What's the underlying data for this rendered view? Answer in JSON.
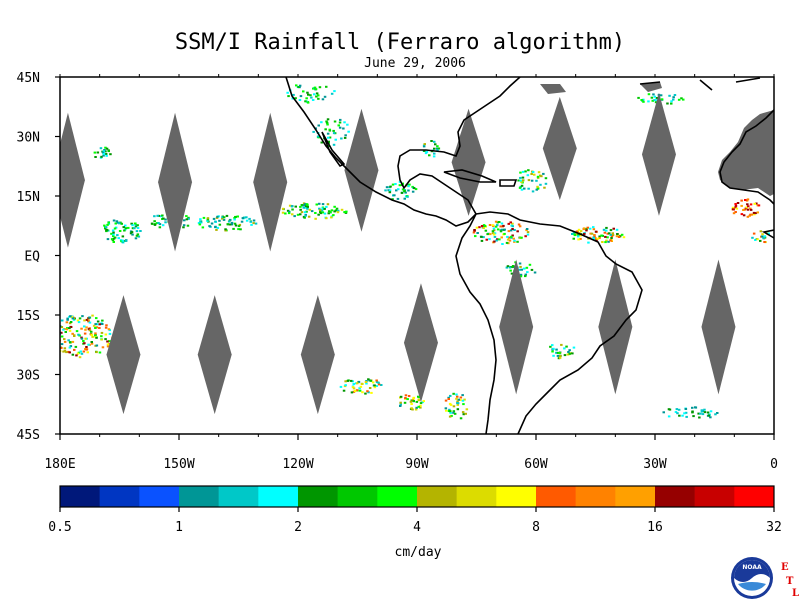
{
  "title": "SSM/I Rainfall (Ferraro algorithm)",
  "subtitle": "June 29, 2006",
  "map": {
    "lon_range": [
      -180,
      0
    ],
    "lat_range": [
      -45,
      45
    ],
    "lon_ticks": [
      {
        "value": -180,
        "label": "180E"
      },
      {
        "value": -150,
        "label": "150W"
      },
      {
        "value": -120,
        "label": "120W"
      },
      {
        "value": -90,
        "label": "90W"
      },
      {
        "value": -60,
        "label": "60W"
      },
      {
        "value": -30,
        "label": "30W"
      },
      {
        "value": 0,
        "label": "0"
      }
    ],
    "lat_ticks": [
      {
        "value": 45,
        "label": "45N"
      },
      {
        "value": 30,
        "label": "30N"
      },
      {
        "value": 15,
        "label": "15N"
      },
      {
        "value": 0,
        "label": "EQ"
      },
      {
        "value": -15,
        "label": "15S"
      },
      {
        "value": -30,
        "label": "30S"
      },
      {
        "value": -45,
        "label": "45S"
      }
    ],
    "no_data_color": "#666666",
    "coast_color": "#000000",
    "no_data_gaps": [
      {
        "lon": -178,
        "lat_top": 36,
        "lat_bottom": 2
      },
      {
        "lon": -151,
        "lat_top": 36,
        "lat_bottom": 1
      },
      {
        "lon": -127,
        "lat_top": 36,
        "lat_bottom": 1
      },
      {
        "lon": -104,
        "lat_top": 37,
        "lat_bottom": 6
      },
      {
        "lon": -77,
        "lat_top": 37,
        "lat_bottom": 10
      },
      {
        "lon": -54,
        "lat_top": 40,
        "lat_bottom": 14
      },
      {
        "lon": -29,
        "lat_top": 41,
        "lat_bottom": 10
      },
      {
        "lon": -164,
        "lat_top": -10,
        "lat_bottom": -40
      },
      {
        "lon": -141,
        "lat_top": -10,
        "lat_bottom": -40
      },
      {
        "lon": -115,
        "lat_top": -10,
        "lat_bottom": -40
      },
      {
        "lon": -89,
        "lat_top": -7,
        "lat_bottom": -37
      },
      {
        "lon": -65,
        "lat_top": -1,
        "lat_bottom": -35
      },
      {
        "lon": -40,
        "lat_top": -1,
        "lat_bottom": -35
      },
      {
        "lon": -14,
        "lat_top": -1,
        "lat_bottom": -35
      }
    ]
  },
  "colorbar": {
    "colors": [
      "#00187a",
      "#0036c2",
      "#0a52ff",
      "#009696",
      "#00c8c8",
      "#00ffff",
      "#009600",
      "#00c800",
      "#00ff00",
      "#b4b400",
      "#dcdc00",
      "#ffff00",
      "#ff5a00",
      "#ff8200",
      "#ffa000",
      "#960000",
      "#c80000",
      "#ff0000"
    ],
    "tick_labels": [
      "0.5",
      "1",
      "2",
      "4",
      "8",
      "16",
      "32"
    ],
    "units": "cm/day"
  },
  "logo": {
    "agency": "NOAA",
    "letters": [
      "E",
      "T",
      "L"
    ]
  }
}
